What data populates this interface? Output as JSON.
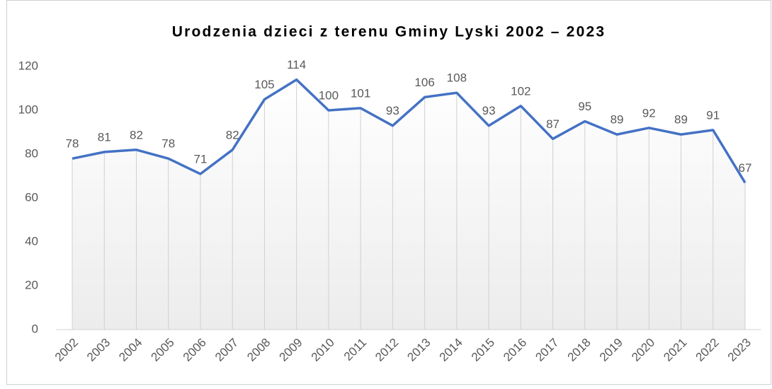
{
  "chart_data": {
    "type": "line",
    "title": "Urodzenia dzieci z terenu Gminy Lyski 2002 – 2023",
    "categories": [
      "2002",
      "2003",
      "2004",
      "2005",
      "2006",
      "2007",
      "2008",
      "2009",
      "2010",
      "2011",
      "2012",
      "2013",
      "2014",
      "2015",
      "2016",
      "2017",
      "2018",
      "2019",
      "2020",
      "2021",
      "2022",
      "2023"
    ],
    "values": [
      78,
      81,
      82,
      78,
      71,
      82,
      105,
      114,
      100,
      101,
      93,
      106,
      108,
      93,
      102,
      87,
      95,
      89,
      92,
      89,
      91,
      67
    ],
    "color": "#4472c4",
    "ylim": [
      0,
      120
    ],
    "yticks": [
      0,
      20,
      40,
      60,
      80,
      100,
      120
    ],
    "grid": false,
    "drop_lines": true
  }
}
